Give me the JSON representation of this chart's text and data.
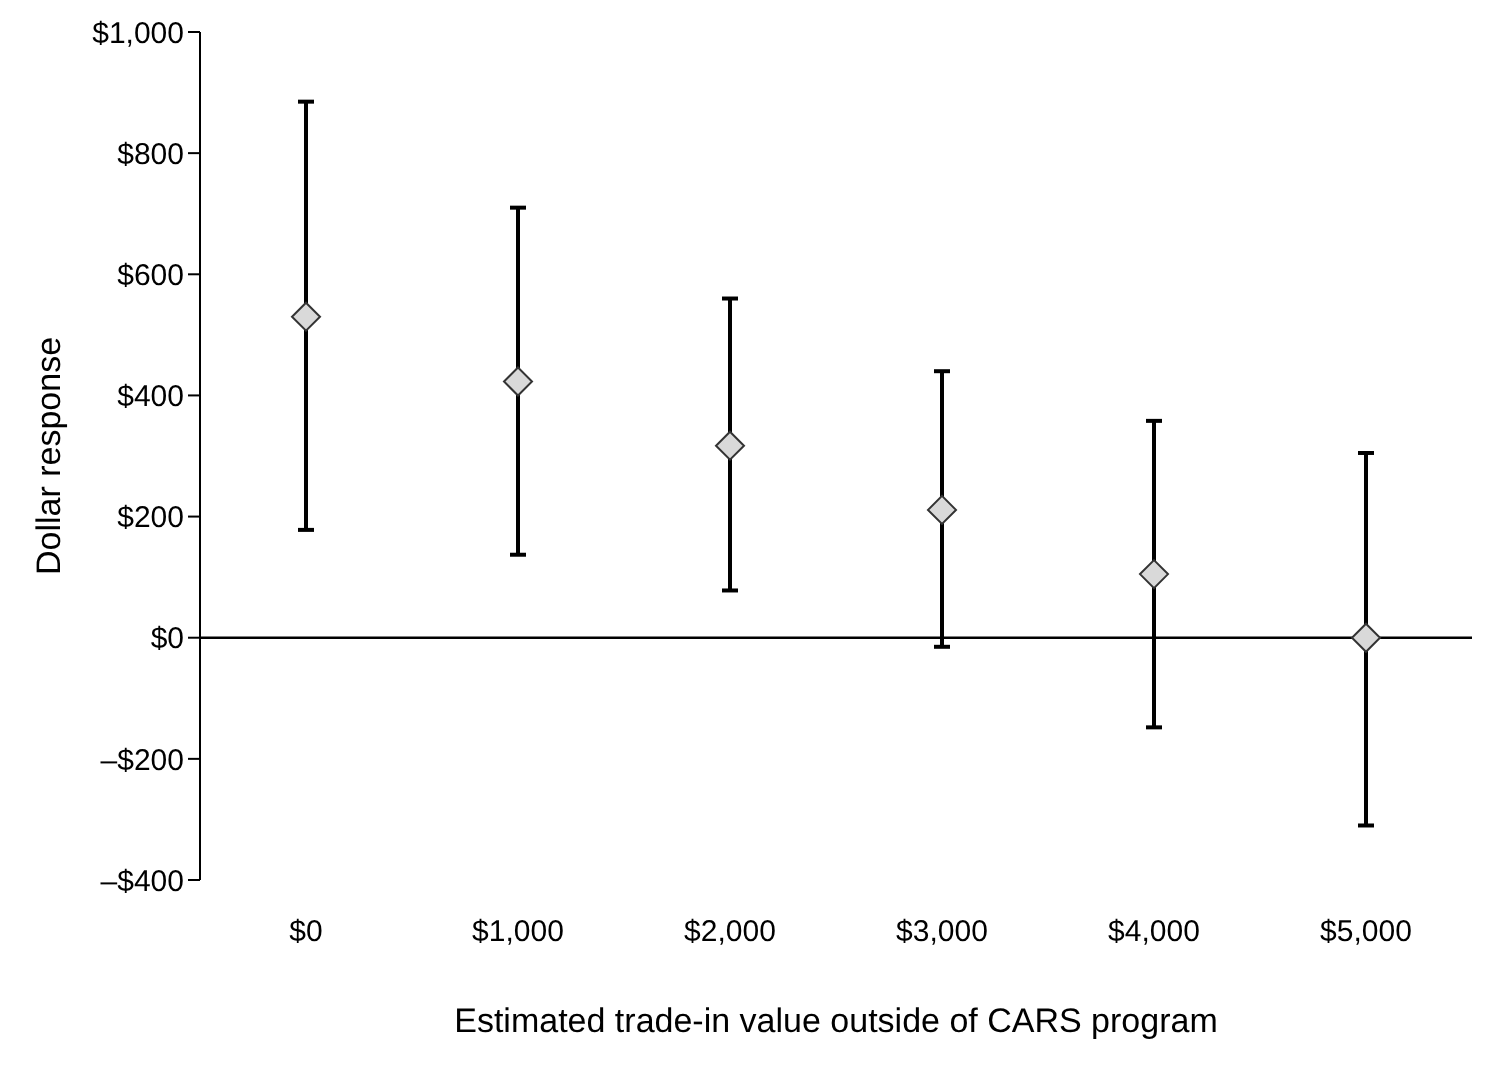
{
  "chart_data": {
    "type": "scatter",
    "xlabel": "Estimated trade-in value outside of CARS program",
    "ylabel": "Dollar response",
    "categories": [
      "$0",
      "$1,000",
      "$2,000",
      "$3,000",
      "$4,000",
      "$5,000"
    ],
    "values": [
      530,
      423,
      317,
      211,
      105,
      0
    ],
    "errors": [
      [
        178,
        885
      ],
      [
        137,
        710
      ],
      [
        78,
        560
      ],
      [
        -15,
        440
      ],
      [
        -148,
        358
      ],
      [
        -310,
        305
      ]
    ],
    "color": "#d9d9d9",
    "marker": "diamond",
    "ylim": [
      -400,
      1000
    ],
    "yticks": [
      {
        "value": -400,
        "label": "–$400"
      },
      {
        "value": -200,
        "label": "–$200"
      },
      {
        "value": 0,
        "label": "$0"
      },
      {
        "value": 200,
        "label": "$200"
      },
      {
        "value": 400,
        "label": "$400"
      },
      {
        "value": 600,
        "label": "$600"
      },
      {
        "value": 800,
        "label": "$800"
      },
      {
        "value": 1000,
        "label": "$1,000"
      }
    ],
    "ref_lines": [
      {
        "axis": "y",
        "value": 0,
        "color": "#000000"
      }
    ],
    "grid": false,
    "legend": false
  }
}
